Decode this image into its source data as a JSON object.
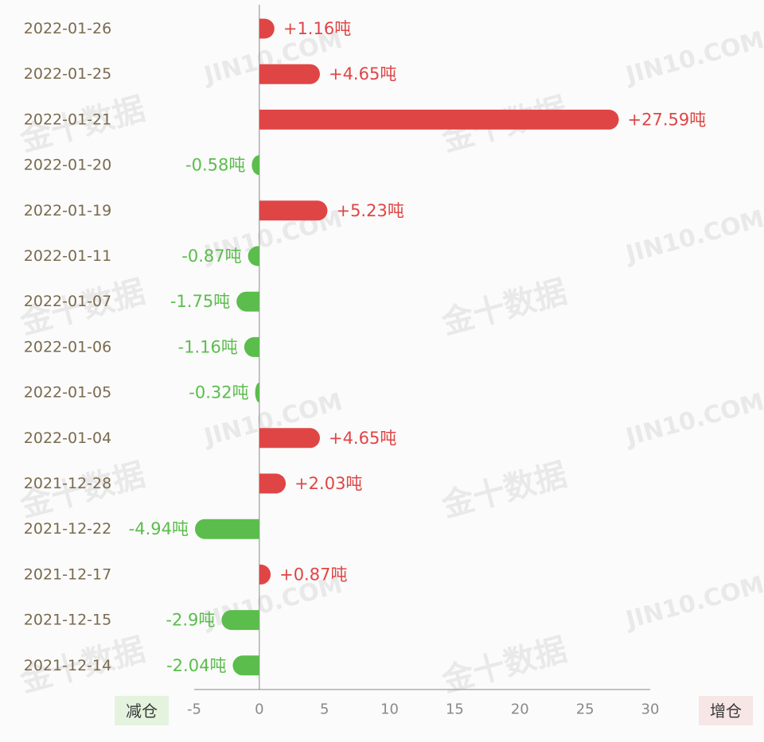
{
  "chart_data": {
    "type": "bar",
    "orientation": "horizontal",
    "categories": [
      "2022-01-26",
      "2022-01-25",
      "2022-01-21",
      "2022-01-20",
      "2022-01-19",
      "2022-01-11",
      "2022-01-07",
      "2022-01-06",
      "2022-01-05",
      "2022-01-04",
      "2021-12-28",
      "2021-12-22",
      "2021-12-17",
      "2021-12-15",
      "2021-12-14"
    ],
    "values": [
      1.16,
      4.65,
      27.59,
      -0.58,
      5.23,
      -0.87,
      -1.75,
      -1.16,
      -0.32,
      4.65,
      2.03,
      -4.94,
      0.87,
      -2.9,
      -2.04
    ],
    "labels": [
      "+1.16吨",
      "+4.65吨",
      "+27.59吨",
      "-0.58吨",
      "+5.23吨",
      "-0.87吨",
      "-1.75吨",
      "-1.16吨",
      "-0.32吨",
      "+4.65吨",
      "+2.03吨",
      "-4.94吨",
      "+0.87吨",
      "-2.9吨",
      "-2.04吨"
    ],
    "x_ticks": [
      "-5",
      "0",
      "5",
      "10",
      "15",
      "20",
      "25",
      "30"
    ],
    "xlim": [
      -5,
      30
    ],
    "grid": false,
    "legend": {
      "negative_label": "减仓",
      "positive_label": "增仓",
      "placement": "bottom"
    },
    "colors": {
      "positive": "#e04545",
      "negative": "#5bbd4c",
      "category_text": "#7a6a4f",
      "axis": "#8a8a8a",
      "tick_text": "#8a8a8a",
      "negative_legend_bg": "#e3f3dd",
      "positive_legend_bg": "#f7e6e6"
    }
  },
  "watermark": {
    "cn": "金十数据",
    "en": "JIN10.COM"
  }
}
